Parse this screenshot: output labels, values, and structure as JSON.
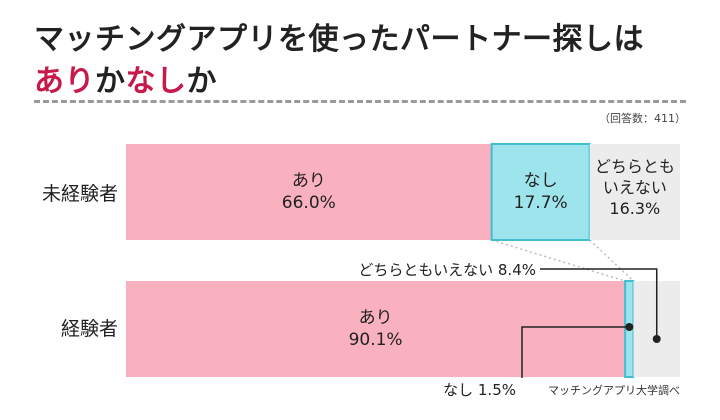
{
  "title": {
    "line1": "マッチングアプリを使ったパートナー探しは",
    "line2_part1": "あり",
    "line2_part2": "か",
    "line2_part3": "なし",
    "line2_part4": "か"
  },
  "note": "（回答数：411）",
  "source": "マッチングアプリ大学調べ",
  "colors": {
    "yes": "#f9b0bf",
    "no_fill": "#9ee4ec",
    "no_border": "#3fbfcf",
    "neither": "#ececec",
    "accent": "#c8194b"
  },
  "chart_data": {
    "type": "bar",
    "orientation": "horizontal",
    "stacked": true,
    "unit": "%",
    "categories": [
      "未経験者",
      "経験者"
    ],
    "series": [
      {
        "name": "あり",
        "values": [
          66.0,
          90.1
        ]
      },
      {
        "name": "なし",
        "values": [
          17.7,
          1.5
        ]
      },
      {
        "name": "どちらともいえない",
        "values": [
          16.3,
          8.4
        ]
      }
    ],
    "labels": {
      "row0_yes_name": "あり",
      "row0_yes_val": "66.0%",
      "row0_no_name": "なし",
      "row0_no_val": "17.7%",
      "row0_neither_l1": "どちらとも",
      "row0_neither_l2": "いえない",
      "row0_neither_val": "16.3%",
      "row1_yes_name": "あり",
      "row1_yes_val": "90.1%",
      "row1_neither_callout": "どちらともいえない 8.4%",
      "row1_no_callout": "なし 1.5%"
    }
  }
}
